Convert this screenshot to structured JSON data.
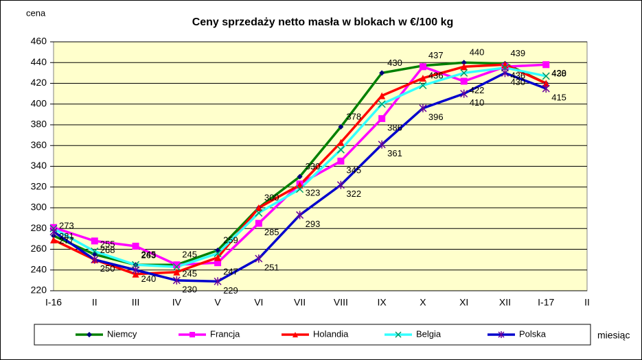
{
  "chart_data": {
    "type": "line",
    "title": "Ceny sprzedaży netto masła w blokach w €/100 kg",
    "y_label": "cena",
    "x_label": "miesiąc",
    "categories": [
      "I-16",
      "II",
      "III",
      "IV",
      "V",
      "VI",
      "VII",
      "VIII",
      "IX",
      "X",
      "XI",
      "XII",
      "I-17",
      "II"
    ],
    "ylim": [
      220,
      460
    ],
    "yticks": [
      220,
      240,
      260,
      280,
      300,
      320,
      340,
      360,
      380,
      400,
      420,
      440,
      460
    ],
    "grid": true,
    "legend": "bottom",
    "series": [
      {
        "name": "Niemcy",
        "color": "#008000",
        "marker": "diamond",
        "marker_color": "#000080",
        "labels": true,
        "values": [
          273,
          255,
          245,
          245,
          259,
          300,
          330,
          378,
          430,
          437,
          440,
          439,
          420,
          null
        ]
      },
      {
        "name": "Francja",
        "color": "#ff00ff",
        "marker": "square",
        "marker_color": "#ff00ff",
        "labels": true,
        "values": [
          281,
          268,
          263,
          245,
          247,
          285,
          323,
          345,
          386,
          436,
          422,
          436,
          438,
          null
        ]
      },
      {
        "name": "Holandia",
        "color": "#ff0000",
        "marker": "triangle",
        "marker_color": "#ff0000",
        "labels": false,
        "values": [
          269,
          250,
          236,
          238,
          252,
          300,
          322,
          363,
          408,
          425,
          436,
          438,
          420,
          null
        ]
      },
      {
        "name": "Belgia",
        "color": "#33ffff",
        "marker": "x",
        "marker_color": "#009966",
        "labels": false,
        "values": [
          280,
          258,
          245,
          243,
          256,
          295,
          318,
          356,
          400,
          418,
          430,
          435,
          427,
          null
        ]
      },
      {
        "name": "Polska",
        "color": "#0000cc",
        "marker": "star",
        "marker_color": "#660099",
        "labels": true,
        "values": [
          277,
          250,
          240,
          230,
          229,
          251,
          293,
          322,
          361,
          396,
          410,
          430,
          415,
          null
        ]
      }
    ]
  }
}
